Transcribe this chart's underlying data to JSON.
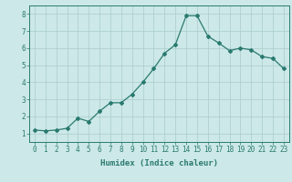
{
  "x": [
    0,
    1,
    2,
    3,
    4,
    5,
    6,
    7,
    8,
    9,
    10,
    11,
    12,
    13,
    14,
    15,
    16,
    17,
    18,
    19,
    20,
    21,
    22,
    23
  ],
  "y": [
    1.2,
    1.15,
    1.2,
    1.3,
    1.9,
    1.7,
    2.3,
    2.8,
    2.8,
    3.3,
    4.0,
    4.8,
    5.7,
    6.2,
    7.9,
    7.9,
    6.7,
    6.3,
    5.85,
    6.0,
    5.9,
    5.5,
    5.4,
    4.8
  ],
  "line_color": "#2a7a6f",
  "bg_color": "#cce8e8",
  "grid_color": "#aacccc",
  "xlabel": "Humidex (Indice chaleur)",
  "xlim": [
    -0.5,
    23.5
  ],
  "ylim": [
    0.5,
    8.5
  ],
  "yticks": [
    1,
    2,
    3,
    4,
    5,
    6,
    7,
    8
  ],
  "xticks": [
    0,
    1,
    2,
    3,
    4,
    5,
    6,
    7,
    8,
    9,
    10,
    11,
    12,
    13,
    14,
    15,
    16,
    17,
    18,
    19,
    20,
    21,
    22,
    23
  ],
  "text_color": "#2a7a6f",
  "xlabel_fontsize": 6.5,
  "tick_fontsize": 5.5,
  "marker": "D",
  "marker_size": 2.0,
  "line_width": 0.9
}
